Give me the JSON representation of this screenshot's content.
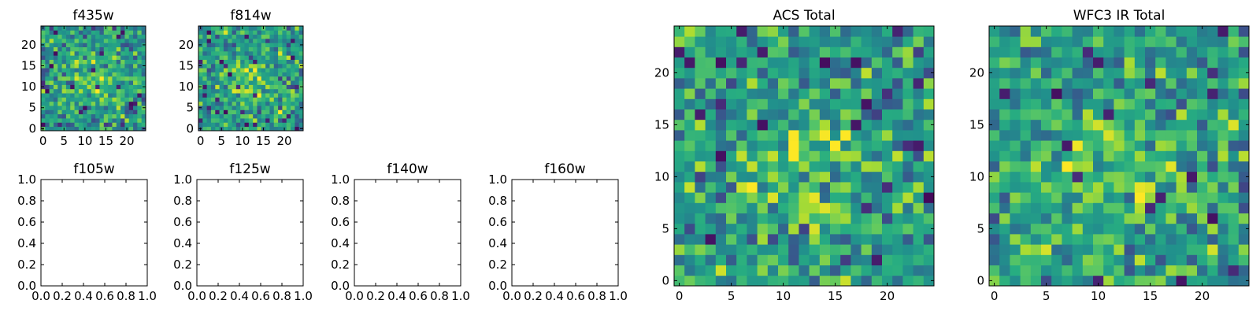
{
  "chart_data": [
    {
      "type": "heatmap",
      "title": "f435w",
      "xlim": [
        0,
        25
      ],
      "ylim": [
        0,
        25
      ],
      "xticks": [
        "0",
        "5",
        "10",
        "15",
        "20"
      ],
      "yticks": [
        "0",
        "5",
        "10",
        "15",
        "20"
      ],
      "colormap": "viridis",
      "grid_size": [
        25,
        25
      ],
      "seed": 435,
      "values": []
    },
    {
      "type": "heatmap",
      "title": "f814w",
      "xlim": [
        0,
        25
      ],
      "ylim": [
        0,
        25
      ],
      "xticks": [
        "0",
        "5",
        "10",
        "15",
        "20"
      ],
      "yticks": [
        "0",
        "5",
        "10",
        "15",
        "20"
      ],
      "colormap": "viridis",
      "grid_size": [
        25,
        25
      ],
      "seed": 814,
      "values": []
    },
    {
      "type": "heatmap",
      "title": "f105w",
      "xlim": [
        0,
        1
      ],
      "ylim": [
        0,
        1
      ],
      "xticks": [
        "0.0",
        "0.2",
        "0.4",
        "0.6",
        "0.8",
        "1.0"
      ],
      "yticks": [
        "0.0",
        "0.2",
        "0.4",
        "0.6",
        "0.8",
        "1.0"
      ],
      "values": []
    },
    {
      "type": "heatmap",
      "title": "f125w",
      "xlim": [
        0,
        1
      ],
      "ylim": [
        0,
        1
      ],
      "xticks": [
        "0.0",
        "0.2",
        "0.4",
        "0.6",
        "0.8",
        "1.0"
      ],
      "yticks": [
        "0.0",
        "0.2",
        "0.4",
        "0.6",
        "0.8",
        "1.0"
      ],
      "values": []
    },
    {
      "type": "heatmap",
      "title": "f140w",
      "xlim": [
        0,
        1
      ],
      "ylim": [
        0,
        1
      ],
      "xticks": [
        "0.0",
        "0.2",
        "0.4",
        "0.6",
        "0.8",
        "1.0"
      ],
      "yticks": [
        "0.0",
        "0.2",
        "0.4",
        "0.6",
        "0.8",
        "1.0"
      ],
      "values": []
    },
    {
      "type": "heatmap",
      "title": "f160w",
      "xlim": [
        0,
        1
      ],
      "ylim": [
        0,
        1
      ],
      "xticks": [
        "0.0",
        "0.2",
        "0.4",
        "0.6",
        "0.8",
        "1.0"
      ],
      "yticks": [
        "0.0",
        "0.2",
        "0.4",
        "0.6",
        "0.8",
        "1.0"
      ],
      "values": []
    },
    {
      "type": "heatmap",
      "title": "ACS Total",
      "xlim": [
        0,
        25
      ],
      "ylim": [
        0,
        25
      ],
      "xticks": [
        "0",
        "5",
        "10",
        "15",
        "20"
      ],
      "yticks": [
        "0",
        "5",
        "10",
        "15",
        "20"
      ],
      "colormap": "viridis",
      "grid_size": [
        25,
        25
      ],
      "seed": 1111,
      "values": []
    },
    {
      "type": "heatmap",
      "title": "WFC3 IR Total",
      "xlim": [
        0,
        25
      ],
      "ylim": [
        0,
        25
      ],
      "xticks": [
        "0",
        "5",
        "10",
        "15",
        "20"
      ],
      "yticks": [
        "0",
        "5",
        "10",
        "15",
        "20"
      ],
      "colormap": "viridis",
      "grid_size": [
        25,
        25
      ],
      "seed": 2222,
      "values": []
    }
  ]
}
